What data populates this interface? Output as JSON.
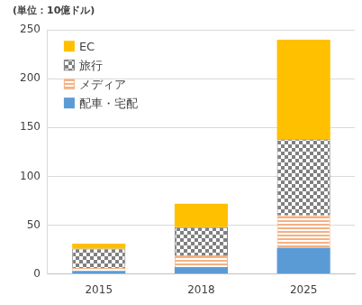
{
  "chart_data": {
    "type": "bar",
    "stacked": true,
    "ylabel": "(単位：10億ドル)",
    "categories": [
      "2015",
      "2018",
      "2025"
    ],
    "series": [
      {
        "name": "配車・宅配",
        "color": "#5b9bd5",
        "values": [
          3,
          7,
          27
        ]
      },
      {
        "name": "メディア",
        "color": "#f4b183",
        "values": [
          3,
          12,
          33
        ]
      },
      {
        "name": "旅行",
        "color": "#808080",
        "values": [
          20,
          29,
          78
        ]
      },
      {
        "name": "EC",
        "color": "#ffc000",
        "values": [
          5,
          24,
          102
        ]
      }
    ],
    "ylim": [
      0,
      250
    ],
    "yticks": [
      0,
      50,
      100,
      150,
      200,
      250
    ],
    "grid": true,
    "legend": "upper left"
  }
}
